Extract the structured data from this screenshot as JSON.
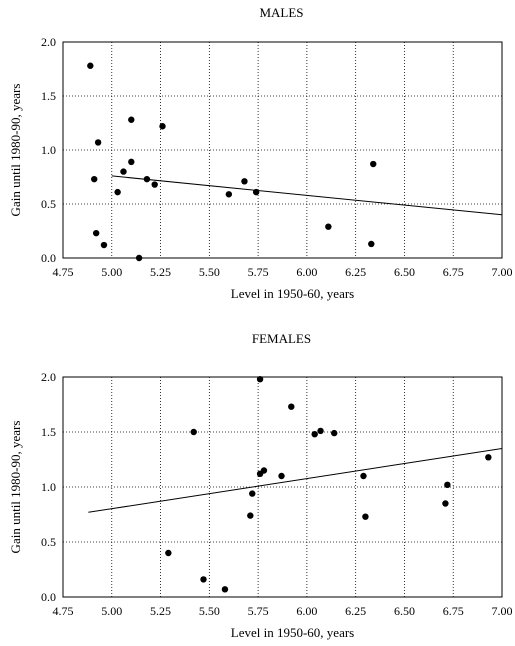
{
  "chart_data": [
    {
      "type": "scatter",
      "title": "MALES",
      "xlabel": "Level in 1950-60, years",
      "ylabel": "Gain until 1980-90, years",
      "xlim": [
        4.75,
        7.0
      ],
      "ylim": [
        0.0,
        2.0
      ],
      "xticks": [
        "4.75",
        "5.00",
        "5.25",
        "5.50",
        "5.75",
        "6.00",
        "6.25",
        "6.50",
        "6.75",
        "7.00"
      ],
      "yticks": [
        "0.0",
        "0.5",
        "1.0",
        "1.5",
        "2.0"
      ],
      "grid": true,
      "points": [
        {
          "x": 4.89,
          "y": 1.78
        },
        {
          "x": 4.91,
          "y": 0.73
        },
        {
          "x": 4.92,
          "y": 0.23
        },
        {
          "x": 4.93,
          "y": 1.07
        },
        {
          "x": 4.96,
          "y": 0.12
        },
        {
          "x": 5.03,
          "y": 0.61
        },
        {
          "x": 5.06,
          "y": 0.8
        },
        {
          "x": 5.1,
          "y": 1.28
        },
        {
          "x": 5.1,
          "y": 0.89
        },
        {
          "x": 5.14,
          "y": 0.0
        },
        {
          "x": 5.18,
          "y": 0.73
        },
        {
          "x": 5.22,
          "y": 0.68
        },
        {
          "x": 5.26,
          "y": 1.22
        },
        {
          "x": 5.6,
          "y": 0.59
        },
        {
          "x": 5.68,
          "y": 0.71
        },
        {
          "x": 5.74,
          "y": 0.61
        },
        {
          "x": 6.11,
          "y": 0.29
        },
        {
          "x": 6.33,
          "y": 0.13
        },
        {
          "x": 6.34,
          "y": 0.87
        }
      ],
      "trendline": {
        "x": [
          5.0,
          7.0
        ],
        "y": [
          0.76,
          0.4
        ]
      }
    },
    {
      "type": "scatter",
      "title": "FEMALES",
      "xlabel": "Level in 1950-60, years",
      "ylabel": "Gain until 1980-90, years",
      "xlim": [
        4.75,
        7.0
      ],
      "ylim": [
        0.0,
        2.0
      ],
      "xticks": [
        "4.75",
        "5.00",
        "5.25",
        "5.50",
        "5.75",
        "6.00",
        "6.25",
        "6.50",
        "6.75",
        "7.00"
      ],
      "yticks": [
        "0.0",
        "0.5",
        "1.0",
        "1.5",
        "2.0"
      ],
      "grid": true,
      "points": [
        {
          "x": 5.29,
          "y": 0.4
        },
        {
          "x": 5.42,
          "y": 1.5
        },
        {
          "x": 5.47,
          "y": 0.16
        },
        {
          "x": 5.58,
          "y": 0.07
        },
        {
          "x": 5.71,
          "y": 0.74
        },
        {
          "x": 5.72,
          "y": 0.94
        },
        {
          "x": 5.76,
          "y": 1.98
        },
        {
          "x": 5.76,
          "y": 1.12
        },
        {
          "x": 5.78,
          "y": 1.15
        },
        {
          "x": 5.87,
          "y": 1.1
        },
        {
          "x": 5.92,
          "y": 1.73
        },
        {
          "x": 6.04,
          "y": 1.48
        },
        {
          "x": 6.07,
          "y": 1.51
        },
        {
          "x": 6.14,
          "y": 1.49
        },
        {
          "x": 6.29,
          "y": 1.1
        },
        {
          "x": 6.3,
          "y": 0.73
        },
        {
          "x": 6.71,
          "y": 0.85
        },
        {
          "x": 6.72,
          "y": 1.02
        },
        {
          "x": 6.93,
          "y": 1.27
        }
      ],
      "trendline": {
        "x": [
          4.88,
          7.0
        ],
        "y": [
          0.77,
          1.35
        ]
      }
    }
  ]
}
